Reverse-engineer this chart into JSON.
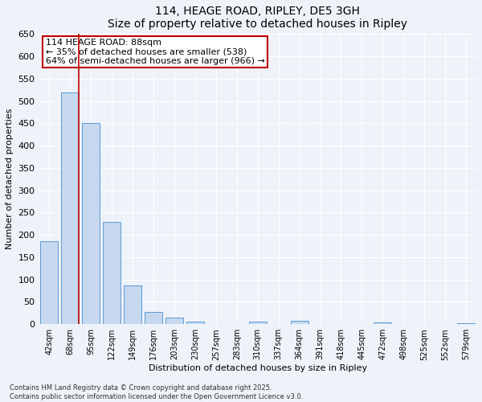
{
  "title1": "114, HEAGE ROAD, RIPLEY, DE5 3GH",
  "title2": "Size of property relative to detached houses in Ripley",
  "xlabel": "Distribution of detached houses by size in Ripley",
  "ylabel": "Number of detached properties",
  "categories": [
    "42sqm",
    "68sqm",
    "95sqm",
    "122sqm",
    "149sqm",
    "176sqm",
    "203sqm",
    "230sqm",
    "257sqm",
    "283sqm",
    "310sqm",
    "337sqm",
    "364sqm",
    "391sqm",
    "418sqm",
    "445sqm",
    "472sqm",
    "498sqm",
    "525sqm",
    "552sqm",
    "579sqm"
  ],
  "values": [
    185,
    520,
    450,
    230,
    87,
    28,
    14,
    6,
    0,
    0,
    5,
    0,
    7,
    0,
    0,
    0,
    3,
    0,
    0,
    0,
    2
  ],
  "bar_color": "#c5d8ee",
  "bar_edge_color": "#5b9bd5",
  "vline_bar_idx": 1,
  "vline_color": "#c00000",
  "annotation_title": "114 HEAGE ROAD: 88sqm",
  "annotation_line1": "← 35% of detached houses are smaller (538)",
  "annotation_line2": "64% of semi-detached houses are larger (966) →",
  "annotation_box_edgecolor": "#c00000",
  "ylim": [
    0,
    650
  ],
  "yticks": [
    0,
    50,
    100,
    150,
    200,
    250,
    300,
    350,
    400,
    450,
    500,
    550,
    600,
    650
  ],
  "footer1": "Contains HM Land Registry data © Crown copyright and database right 2025.",
  "footer2": "Contains public sector information licensed under the Open Government Licence v3.0.",
  "bg_color": "#eef2f9",
  "plot_bg_color": "#eef2f9",
  "grid_color": "#ffffff",
  "title_fontsize": 10,
  "axis_label_fontsize": 8,
  "tick_fontsize": 8,
  "annotation_fontsize": 8,
  "footer_fontsize": 6
}
